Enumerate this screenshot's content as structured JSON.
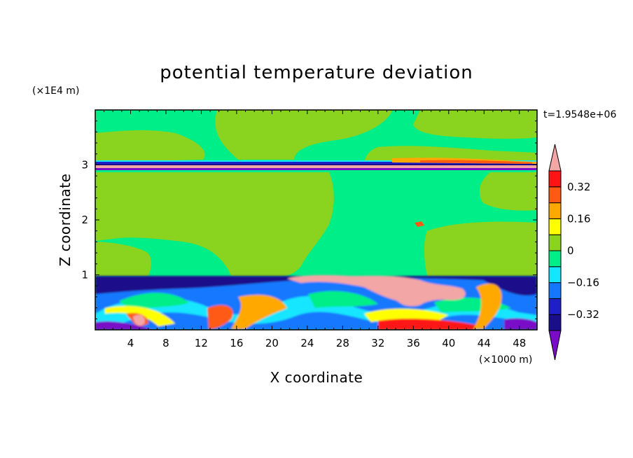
{
  "chart_data": {
    "type": "heatmap",
    "title": "potential temperature deviation",
    "xlabel": "X coordinate",
    "ylabel": "Z coordinate",
    "x_unit": "(×1000 m)",
    "y_unit": "(×1E4 m)",
    "time_label": "t=1.9548e+06",
    "xlim": [
      0,
      50
    ],
    "ylim": [
      0,
      4
    ],
    "x_ticks": [
      4,
      8,
      12,
      16,
      20,
      24,
      28,
      32,
      36,
      40,
      44,
      48
    ],
    "x_tick_labels": [
      "4",
      "8",
      "12",
      "16",
      "20",
      "24",
      "28",
      "32",
      "36",
      "40",
      "44",
      "48"
    ],
    "y_ticks": [
      1,
      2,
      3
    ],
    "y_tick_labels": [
      "1",
      "2",
      "3"
    ],
    "colorbar": {
      "levels": [
        -0.4,
        -0.32,
        -0.24,
        -0.16,
        -0.08,
        0,
        0.08,
        0.16,
        0.24,
        0.32,
        0.4
      ],
      "tick_values": [
        0.32,
        0.16,
        0,
        -0.16,
        -0.32
      ],
      "tick_labels": [
        "0.32",
        "0.16",
        "0",
        "−0.16",
        "−0.32"
      ],
      "colors_low_to_high": [
        "#1a0f8a",
        "#1f1fc8",
        "#1478ff",
        "#14e6ff",
        "#00ee88",
        "#8ad31e",
        "#ffff00",
        "#ffa800",
        "#ff5a14",
        "#ff1414"
      ],
      "under_color": "#7a0cc8",
      "over_color": "#f3a6a6"
    },
    "regions": [
      {
        "name": "upper layer",
        "z_range": [
          3.0,
          4.0
        ],
        "dominant_values": [
          -0.08,
          0.08
        ]
      },
      {
        "name": "thin interface band",
        "z_range": [
          2.92,
          3.0
        ],
        "dominant_values": [
          -0.4,
          0.4
        ]
      },
      {
        "name": "mid layer",
        "z_range": [
          1.0,
          2.92
        ],
        "dominant_values": [
          -0.08,
          0.08
        ]
      },
      {
        "name": "turbulent lower layer",
        "z_range": [
          0.0,
          1.0
        ],
        "dominant_values": [
          -0.4,
          0.4
        ]
      }
    ]
  }
}
